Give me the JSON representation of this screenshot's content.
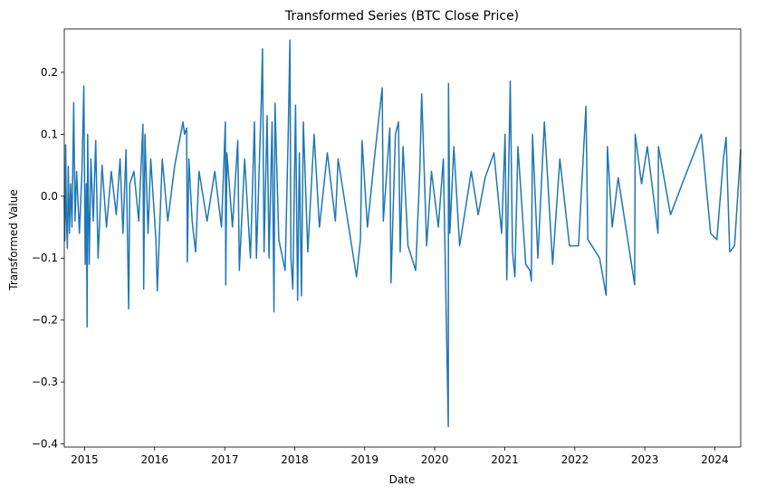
{
  "chart_data": {
    "type": "line",
    "title": "Transformed Series (BTC Close Price)",
    "xlabel": "Date",
    "ylabel": "Transformed Value",
    "x_range": [
      "2014-09-17",
      "2024-05-15"
    ],
    "ylim": [
      -0.405,
      0.27
    ],
    "x_ticks": [
      {
        "label": "2015",
        "date": "2015-01-01"
      },
      {
        "label": "2016",
        "date": "2016-01-01"
      },
      {
        "label": "2017",
        "date": "2017-01-01"
      },
      {
        "label": "2018",
        "date": "2018-01-01"
      },
      {
        "label": "2019",
        "date": "2019-01-01"
      },
      {
        "label": "2020",
        "date": "2020-01-01"
      },
      {
        "label": "2021",
        "date": "2021-01-01"
      },
      {
        "label": "2022",
        "date": "2022-01-01"
      },
      {
        "label": "2023",
        "date": "2023-01-01"
      },
      {
        "label": "2024",
        "date": "2024-01-01"
      }
    ],
    "y_ticks": [
      {
        "label": "0.2",
        "value": 0.2
      },
      {
        "label": "0.1",
        "value": 0.1
      },
      {
        "label": "0.0",
        "value": 0.0
      },
      {
        "label": "−0.1",
        "value": -0.1
      },
      {
        "label": "−0.2",
        "value": -0.2
      },
      {
        "label": "−0.3",
        "value": -0.3
      },
      {
        "label": "−0.4",
        "value": -0.4
      }
    ],
    "grid": false,
    "line_color": "#1f77b4",
    "series": [
      {
        "points": [
          [
            "2014-09-17",
            0.0
          ],
          [
            "2014-09-20",
            -0.072
          ],
          [
            "2014-09-24",
            0.083
          ],
          [
            "2014-09-28",
            -0.03
          ],
          [
            "2014-10-03",
            -0.084
          ],
          [
            "2014-10-08",
            0.048
          ],
          [
            "2014-10-14",
            -0.06
          ],
          [
            "2014-10-20",
            0.02
          ],
          [
            "2014-10-27",
            -0.05
          ],
          [
            "2014-11-05",
            0.151
          ],
          [
            "2014-11-12",
            -0.04
          ],
          [
            "2014-11-20",
            0.04
          ],
          [
            "2014-12-05",
            -0.06
          ],
          [
            "2014-12-18",
            0.04
          ],
          [
            "2014-12-28",
            0.178
          ],
          [
            "2015-01-04",
            -0.11
          ],
          [
            "2015-01-10",
            0.02
          ],
          [
            "2015-01-14",
            -0.211
          ],
          [
            "2015-01-17",
            0.1
          ],
          [
            "2015-01-25",
            -0.11
          ],
          [
            "2015-02-03",
            0.06
          ],
          [
            "2015-02-15",
            -0.04
          ],
          [
            "2015-02-28",
            0.09
          ],
          [
            "2015-03-12",
            -0.1
          ],
          [
            "2015-04-02",
            0.05
          ],
          [
            "2015-04-25",
            -0.05
          ],
          [
            "2015-05-20",
            0.04
          ],
          [
            "2015-06-15",
            -0.03
          ],
          [
            "2015-07-05",
            0.06
          ],
          [
            "2015-07-20",
            -0.06
          ],
          [
            "2015-08-05",
            0.075
          ],
          [
            "2015-08-19",
            -0.182
          ],
          [
            "2015-08-25",
            0.02
          ],
          [
            "2015-09-15",
            0.04
          ],
          [
            "2015-10-10",
            -0.04
          ],
          [
            "2015-11-01",
            0.116
          ],
          [
            "2015-11-05",
            -0.15
          ],
          [
            "2015-11-12",
            0.1
          ],
          [
            "2015-11-28",
            -0.06
          ],
          [
            "2015-12-12",
            0.06
          ],
          [
            "2016-01-08",
            -0.07
          ],
          [
            "2016-01-15",
            -0.153
          ],
          [
            "2016-02-10",
            0.06
          ],
          [
            "2016-03-10",
            -0.04
          ],
          [
            "2016-04-15",
            0.05
          ],
          [
            "2016-05-28",
            0.12
          ],
          [
            "2016-06-05",
            0.1
          ],
          [
            "2016-06-16",
            0.11
          ],
          [
            "2016-06-20",
            -0.106
          ],
          [
            "2016-06-28",
            0.06
          ],
          [
            "2016-07-15",
            -0.04
          ],
          [
            "2016-08-02",
            -0.09
          ],
          [
            "2016-08-20",
            0.04
          ],
          [
            "2016-10-01",
            -0.04
          ],
          [
            "2016-11-10",
            0.04
          ],
          [
            "2016-12-15",
            -0.05
          ],
          [
            "2017-01-04",
            0.12
          ],
          [
            "2017-01-06",
            -0.143
          ],
          [
            "2017-01-12",
            0.07
          ],
          [
            "2017-02-10",
            -0.05
          ],
          [
            "2017-03-10",
            0.09
          ],
          [
            "2017-03-18",
            -0.12
          ],
          [
            "2017-04-15",
            0.06
          ],
          [
            "2017-05-15",
            -0.1
          ],
          [
            "2017-06-05",
            0.12
          ],
          [
            "2017-06-15",
            -0.1
          ],
          [
            "2017-07-10",
            0.15
          ],
          [
            "2017-07-17",
            0.238
          ],
          [
            "2017-07-25",
            -0.09
          ],
          [
            "2017-08-10",
            0.13
          ],
          [
            "2017-08-20",
            -0.1
          ],
          [
            "2017-09-05",
            0.12
          ],
          [
            "2017-09-15",
            -0.187
          ],
          [
            "2017-09-20",
            0.15
          ],
          [
            "2017-10-10",
            -0.07
          ],
          [
            "2017-11-12",
            -0.12
          ],
          [
            "2017-11-28",
            0.1
          ],
          [
            "2017-12-07",
            0.252
          ],
          [
            "2017-12-12",
            -0.1
          ],
          [
            "2017-12-22",
            -0.15
          ],
          [
            "2018-01-05",
            0.147
          ],
          [
            "2018-01-16",
            -0.168
          ],
          [
            "2018-01-25",
            0.07
          ],
          [
            "2018-02-05",
            -0.161
          ],
          [
            "2018-02-15",
            0.12
          ],
          [
            "2018-03-10",
            -0.09
          ],
          [
            "2018-04-12",
            0.1
          ],
          [
            "2018-05-10",
            -0.05
          ],
          [
            "2018-06-20",
            0.07
          ],
          [
            "2018-08-01",
            -0.04
          ],
          [
            "2018-08-15",
            0.06
          ],
          [
            "2018-11-19",
            -0.13
          ],
          [
            "2018-12-10",
            -0.07
          ],
          [
            "2018-12-18",
            0.09
          ],
          [
            "2019-01-15",
            -0.05
          ],
          [
            "2019-02-20",
            0.06
          ],
          [
            "2019-04-02",
            0.175
          ],
          [
            "2019-04-08",
            -0.04
          ],
          [
            "2019-05-12",
            0.11
          ],
          [
            "2019-05-18",
            -0.14
          ],
          [
            "2019-06-10",
            0.1
          ],
          [
            "2019-06-26",
            0.12
          ],
          [
            "2019-07-05",
            -0.09
          ],
          [
            "2019-07-20",
            0.08
          ],
          [
            "2019-08-15",
            -0.08
          ],
          [
            "2019-09-24",
            -0.12
          ],
          [
            "2019-10-15",
            0.04
          ],
          [
            "2019-10-25",
            0.165
          ],
          [
            "2019-11-20",
            -0.08
          ],
          [
            "2019-12-15",
            0.04
          ],
          [
            "2020-01-20",
            -0.05
          ],
          [
            "2020-02-15",
            0.06
          ],
          [
            "2020-03-12",
            -0.372
          ],
          [
            "2020-03-13",
            0.182
          ],
          [
            "2020-03-20",
            -0.06
          ],
          [
            "2020-04-10",
            0.08
          ],
          [
            "2020-05-10",
            -0.08
          ],
          [
            "2020-07-10",
            0.04
          ],
          [
            "2020-08-15",
            -0.03
          ],
          [
            "2020-09-20",
            0.03
          ],
          [
            "2020-11-05",
            0.07
          ],
          [
            "2020-12-15",
            -0.06
          ],
          [
            "2021-01-02",
            0.1
          ],
          [
            "2021-01-11",
            -0.135
          ],
          [
            "2021-01-29",
            0.186
          ],
          [
            "2021-02-10",
            -0.09
          ],
          [
            "2021-02-22",
            -0.13
          ],
          [
            "2021-03-10",
            0.08
          ],
          [
            "2021-04-20",
            -0.11
          ],
          [
            "2021-05-12",
            -0.12
          ],
          [
            "2021-05-19",
            -0.137
          ],
          [
            "2021-05-25",
            0.1
          ],
          [
            "2021-06-22",
            -0.1
          ],
          [
            "2021-07-26",
            0.12
          ],
          [
            "2021-09-07",
            -0.11
          ],
          [
            "2021-10-15",
            0.06
          ],
          [
            "2021-12-04",
            -0.08
          ],
          [
            "2022-01-20",
            -0.08
          ],
          [
            "2022-02-28",
            0.145
          ],
          [
            "2022-03-10",
            -0.07
          ],
          [
            "2022-05-10",
            -0.1
          ],
          [
            "2022-06-13",
            -0.16
          ],
          [
            "2022-06-20",
            0.08
          ],
          [
            "2022-07-15",
            -0.05
          ],
          [
            "2022-08-15",
            0.03
          ],
          [
            "2022-11-09",
            -0.143
          ],
          [
            "2022-11-12",
            0.1
          ],
          [
            "2022-12-15",
            0.02
          ],
          [
            "2023-01-14",
            0.08
          ],
          [
            "2023-03-11",
            -0.06
          ],
          [
            "2023-03-13",
            0.08
          ],
          [
            "2023-05-15",
            -0.03
          ],
          [
            "2023-07-15",
            0.02
          ],
          [
            "2023-10-23",
            0.1
          ],
          [
            "2023-12-10",
            -0.06
          ],
          [
            "2024-01-12",
            -0.07
          ],
          [
            "2024-02-15",
            0.06
          ],
          [
            "2024-02-29",
            0.095
          ],
          [
            "2024-03-19",
            -0.09
          ],
          [
            "2024-04-13",
            -0.08
          ],
          [
            "2024-05-15",
            0.076
          ]
        ]
      }
    ]
  }
}
